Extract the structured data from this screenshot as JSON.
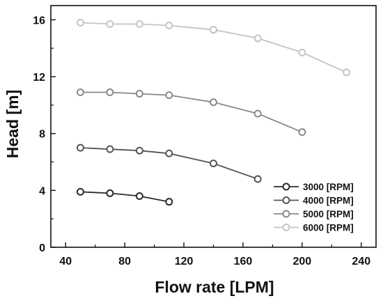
{
  "chart_data": {
    "type": "line",
    "title": "",
    "xlabel": "Flow rate [LPM]",
    "ylabel": "Head [m]",
    "xlim": [
      30,
      250
    ],
    "ylim": [
      0,
      17
    ],
    "xticks": [
      40,
      80,
      120,
      160,
      200,
      240
    ],
    "yticks": [
      0,
      4,
      8,
      12,
      16
    ],
    "grid": false,
    "legend_position": "bottom-right",
    "series": [
      {
        "name": "3000 [RPM]",
        "color": "#2b2b2b",
        "x": [
          50,
          70,
          90,
          110
        ],
        "y": [
          3.9,
          3.8,
          3.6,
          3.2
        ]
      },
      {
        "name": "4000 [RPM]",
        "color": "#555555",
        "x": [
          50,
          70,
          90,
          110,
          140,
          170
        ],
        "y": [
          7.0,
          6.9,
          6.8,
          6.6,
          5.9,
          4.8
        ]
      },
      {
        "name": "5000 [RPM]",
        "color": "#8a8a8a",
        "x": [
          50,
          70,
          90,
          110,
          140,
          170,
          200
        ],
        "y": [
          10.9,
          10.9,
          10.8,
          10.7,
          10.2,
          9.4,
          8.1
        ]
      },
      {
        "name": "6000 [RPM]",
        "color": "#c4c4c4",
        "x": [
          50,
          70,
          90,
          110,
          140,
          170,
          200,
          230
        ],
        "y": [
          15.8,
          15.7,
          15.7,
          15.6,
          15.3,
          14.7,
          13.7,
          12.3
        ]
      }
    ]
  }
}
